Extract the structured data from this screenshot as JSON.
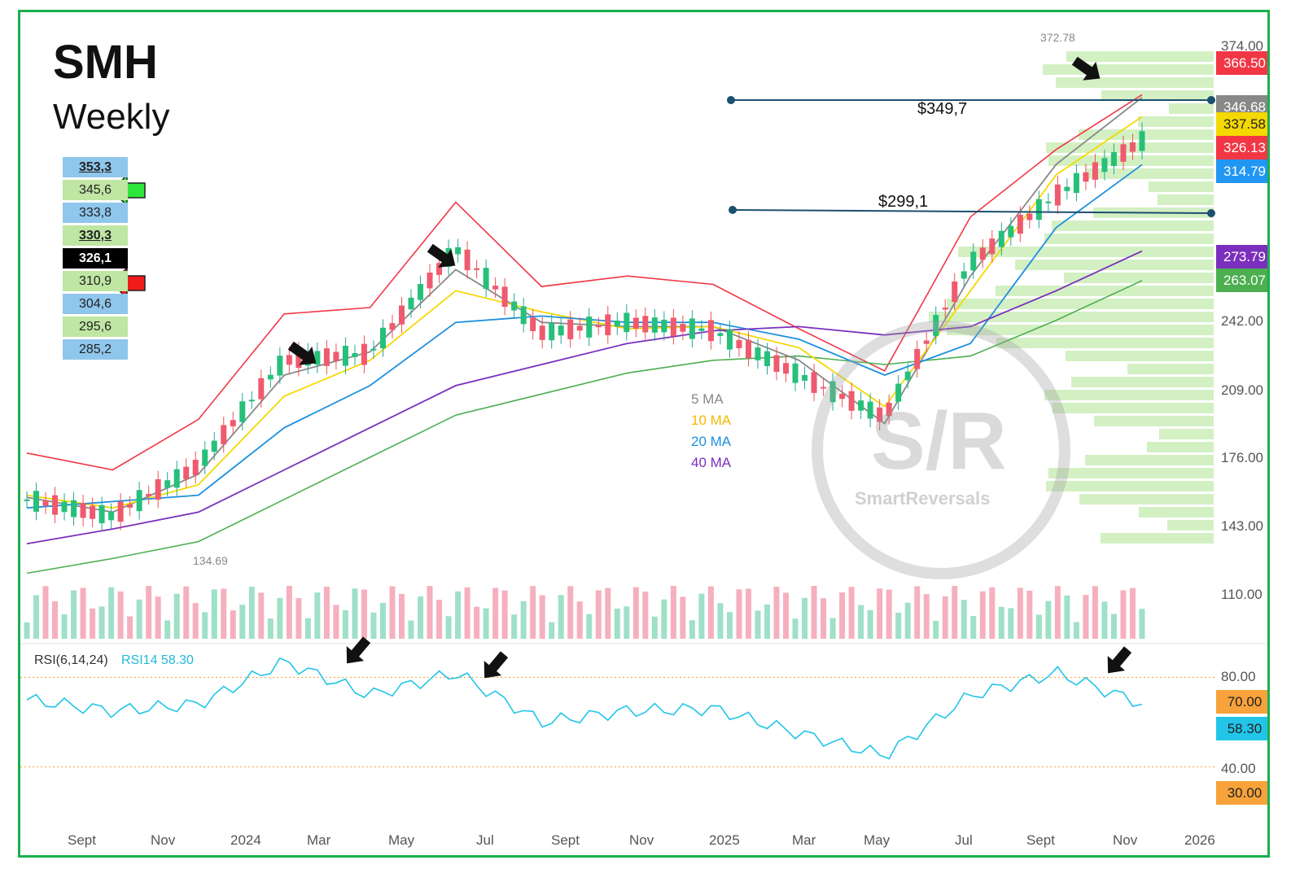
{
  "header": {
    "ticker": "SMH",
    "timeframe": "Weekly"
  },
  "levels": [
    {
      "value": "353,3",
      "bold": true,
      "underline": true,
      "bg": "#8fc6ec"
    },
    {
      "value": "345,6",
      "bold": false,
      "bg": "#bfe6a3"
    },
    {
      "value": "333,8",
      "bold": false,
      "bg": "#8fc6ec"
    },
    {
      "value": "330,3",
      "bold": true,
      "underline": true,
      "bg": "#bfe6a3"
    },
    {
      "value": "326,1",
      "bold": true,
      "bg": "#000000",
      "fg": "#ffffff"
    },
    {
      "value": "310,9",
      "bold": false,
      "bg": "#bfe6a3"
    },
    {
      "value": "304,6",
      "bold": false,
      "bg": "#8fc6ec"
    },
    {
      "value": "295,6",
      "bold": false,
      "bg": "#bfe6a3"
    },
    {
      "value": "285,2",
      "bold": false,
      "bg": "#8fc6ec"
    }
  ],
  "arrows": {
    "green_icon": "arrow-left-green",
    "red_icon": "arrow-left-red"
  },
  "horizontal_lines": [
    {
      "label": "$349,7"
    },
    {
      "label": "$299,1"
    }
  ],
  "ma_legend": [
    {
      "label": "5 MA",
      "color": "#888888"
    },
    {
      "label": "10 MA",
      "color": "#f5b800"
    },
    {
      "label": "20 MA",
      "color": "#1e90e0"
    },
    {
      "label": "40 MA",
      "color": "#7b2fbe"
    }
  ],
  "price_tags": [
    {
      "value": "366.50",
      "bg": "#f23645"
    },
    {
      "value": "346.68",
      "bg": "#888888"
    },
    {
      "value": "337.58",
      "bg": "#f5d800",
      "fg": "#222222"
    },
    {
      "value": "326.13",
      "bg": "#f23645"
    },
    {
      "value": "314.79",
      "bg": "#2196f3"
    },
    {
      "value": "273.79",
      "bg": "#7b2fbe"
    },
    {
      "value": "263.07",
      "bg": "#4caf50"
    }
  ],
  "annotations": {
    "high": "372.78",
    "low": "134.69"
  },
  "y_axis_labels": [
    "374.00",
    "242.00",
    "209.00",
    "176.00",
    "143.00",
    "110.00"
  ],
  "x_axis_labels": [
    "Sept",
    "Nov",
    "2024",
    "Mar",
    "May",
    "Jul",
    "Sept",
    "Nov",
    "2025",
    "Mar",
    "May",
    "Jul",
    "Sept",
    "Nov",
    "2026"
  ],
  "rsi": {
    "label": "RSI(6,14,24)",
    "value_label": "RSI14 58.30",
    "axis": [
      "80.00",
      "40.00"
    ],
    "tags": [
      {
        "value": "70.00",
        "bg": "#f7a23a"
      },
      {
        "value": "58.30",
        "bg": "#22c5e8"
      },
      {
        "value": "30.00",
        "bg": "#f7a23a"
      }
    ]
  },
  "watermark": {
    "text": "S/R",
    "subtext": "SmartReversals"
  },
  "chart_data": {
    "type": "line",
    "title": "SMH Weekly",
    "x": [
      "Sept",
      "Nov",
      "2024",
      "Mar",
      "May",
      "Jul",
      "Sept",
      "Nov",
      "2025",
      "Mar",
      "May",
      "Jul",
      "Sept",
      "Nov"
    ],
    "series": [
      {
        "name": "Price",
        "values": [
          156,
          148,
          172,
          222,
          225,
          275,
          235,
          240,
          236,
          215,
          195,
          268,
          300,
          326
        ]
      },
      {
        "name": "5 MA",
        "values": [
          157,
          150,
          168,
          215,
          226,
          265,
          240,
          238,
          238,
          222,
          192,
          262,
          315,
          346.68
        ]
      },
      {
        "name": "10 MA",
        "values": [
          158,
          152,
          163,
          205,
          222,
          255,
          245,
          237,
          238,
          228,
          200,
          255,
          310,
          337.58
        ]
      },
      {
        "name": "20 MA",
        "values": [
          152,
          155,
          158,
          190,
          210,
          240,
          243,
          240,
          240,
          232,
          215,
          230,
          285,
          314.79
        ]
      },
      {
        "name": "40 MA",
        "values": [
          135,
          142,
          150,
          170,
          190,
          210,
          220,
          230,
          236,
          238,
          234,
          238,
          255,
          273.79
        ]
      },
      {
        "name": "RSI14",
        "values": [
          60,
          55,
          58,
          77,
          62,
          72,
          50,
          55,
          56,
          45,
          35,
          62,
          72,
          58.3
        ]
      }
    ],
    "ylim": [
      110,
      374
    ],
    "rsi_levels": [
      70,
      30
    ]
  }
}
